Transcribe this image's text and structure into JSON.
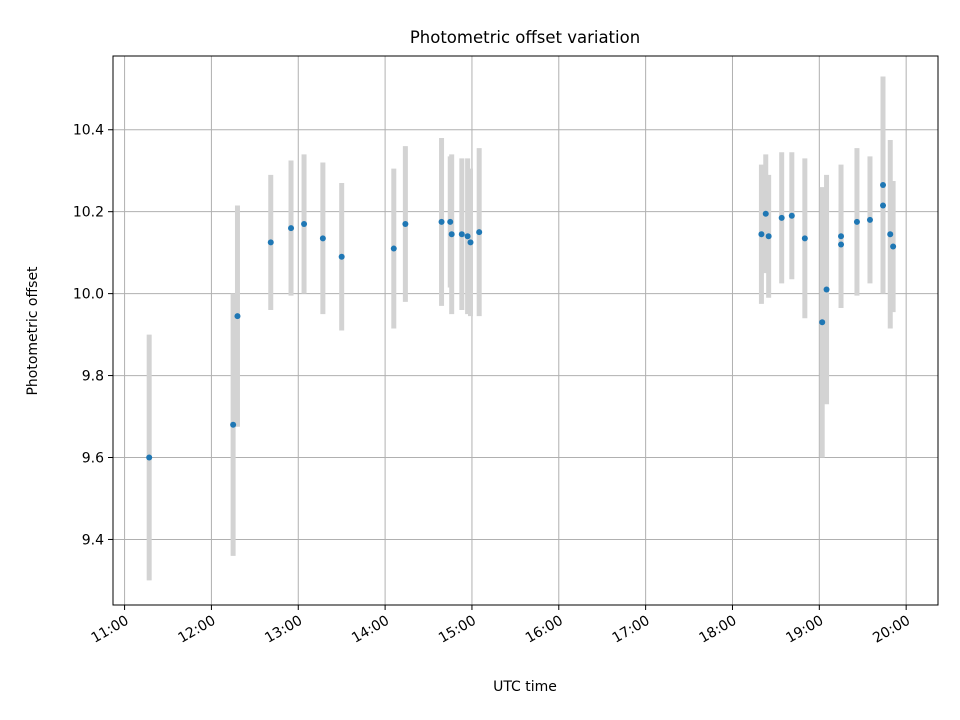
{
  "chart_data": {
    "type": "scatter",
    "title": "Photometric offset variation",
    "xlabel": "UTC time",
    "ylabel": "Photometric offset",
    "x_ticks": [
      "11:00",
      "12:00",
      "13:00",
      "14:00",
      "15:00",
      "16:00",
      "17:00",
      "18:00",
      "19:00",
      "20:00"
    ],
    "y_ticks": [
      "9.4",
      "9.6",
      "9.8",
      "10.0",
      "10.2",
      "10.4"
    ],
    "xlim": [
      "10:52",
      "20:22"
    ],
    "ylim": [
      9.24,
      10.58
    ],
    "grid": true,
    "colors": {
      "point": "#1f77b4",
      "errorbar": "#d3d3d3",
      "grid": "#b0b0b0"
    },
    "points": [
      {
        "x": "11:17",
        "y": 9.6,
        "err": 0.3
      },
      {
        "x": "12:15",
        "y": 9.68,
        "err": 0.32
      },
      {
        "x": "12:18",
        "y": 9.945,
        "err": 0.27
      },
      {
        "x": "12:41",
        "y": 10.125,
        "err": 0.165
      },
      {
        "x": "12:55",
        "y": 10.16,
        "err": 0.165
      },
      {
        "x": "13:04",
        "y": 10.17,
        "err": 0.17
      },
      {
        "x": "13:17",
        "y": 10.135,
        "err": 0.185
      },
      {
        "x": "13:30",
        "y": 10.09,
        "err": 0.18
      },
      {
        "x": "14:06",
        "y": 10.11,
        "err": 0.195
      },
      {
        "x": "14:14",
        "y": 10.17,
        "err": 0.19
      },
      {
        "x": "14:39",
        "y": 10.175,
        "err": 0.205
      },
      {
        "x": "14:45",
        "y": 10.175,
        "err": 0.16
      },
      {
        "x": "14:46",
        "y": 10.145,
        "err": 0.195
      },
      {
        "x": "14:53",
        "y": 10.145,
        "err": 0.185
      },
      {
        "x": "14:57",
        "y": 10.14,
        "err": 0.19
      },
      {
        "x": "14:59",
        "y": 10.125,
        "err": 0.18
      },
      {
        "x": "15:05",
        "y": 10.15,
        "err": 0.205
      },
      {
        "x": "18:20",
        "y": 10.145,
        "err": 0.17
      },
      {
        "x": "18:23",
        "y": 10.195,
        "err": 0.145
      },
      {
        "x": "18:25",
        "y": 10.14,
        "err": 0.15
      },
      {
        "x": "18:34",
        "y": 10.185,
        "err": 0.16
      },
      {
        "x": "18:41",
        "y": 10.19,
        "err": 0.155
      },
      {
        "x": "18:50",
        "y": 10.135,
        "err": 0.195
      },
      {
        "x": "19:02",
        "y": 9.93,
        "err": 0.33
      },
      {
        "x": "19:05",
        "y": 10.01,
        "err": 0.28
      },
      {
        "x": "19:15",
        "y": 10.14,
        "err": 0.175
      },
      {
        "x": "19:15",
        "y": 10.12,
        "err": 0.1
      },
      {
        "x": "19:26",
        "y": 10.175,
        "err": 0.18
      },
      {
        "x": "19:35",
        "y": 10.18,
        "err": 0.155
      },
      {
        "x": "19:44",
        "y": 10.265,
        "err": 0.265
      },
      {
        "x": "19:44",
        "y": 10.215,
        "err": 0.205
      },
      {
        "x": "19:49",
        "y": 10.145,
        "err": 0.23
      },
      {
        "x": "19:51",
        "y": 10.115,
        "err": 0.16
      }
    ]
  }
}
